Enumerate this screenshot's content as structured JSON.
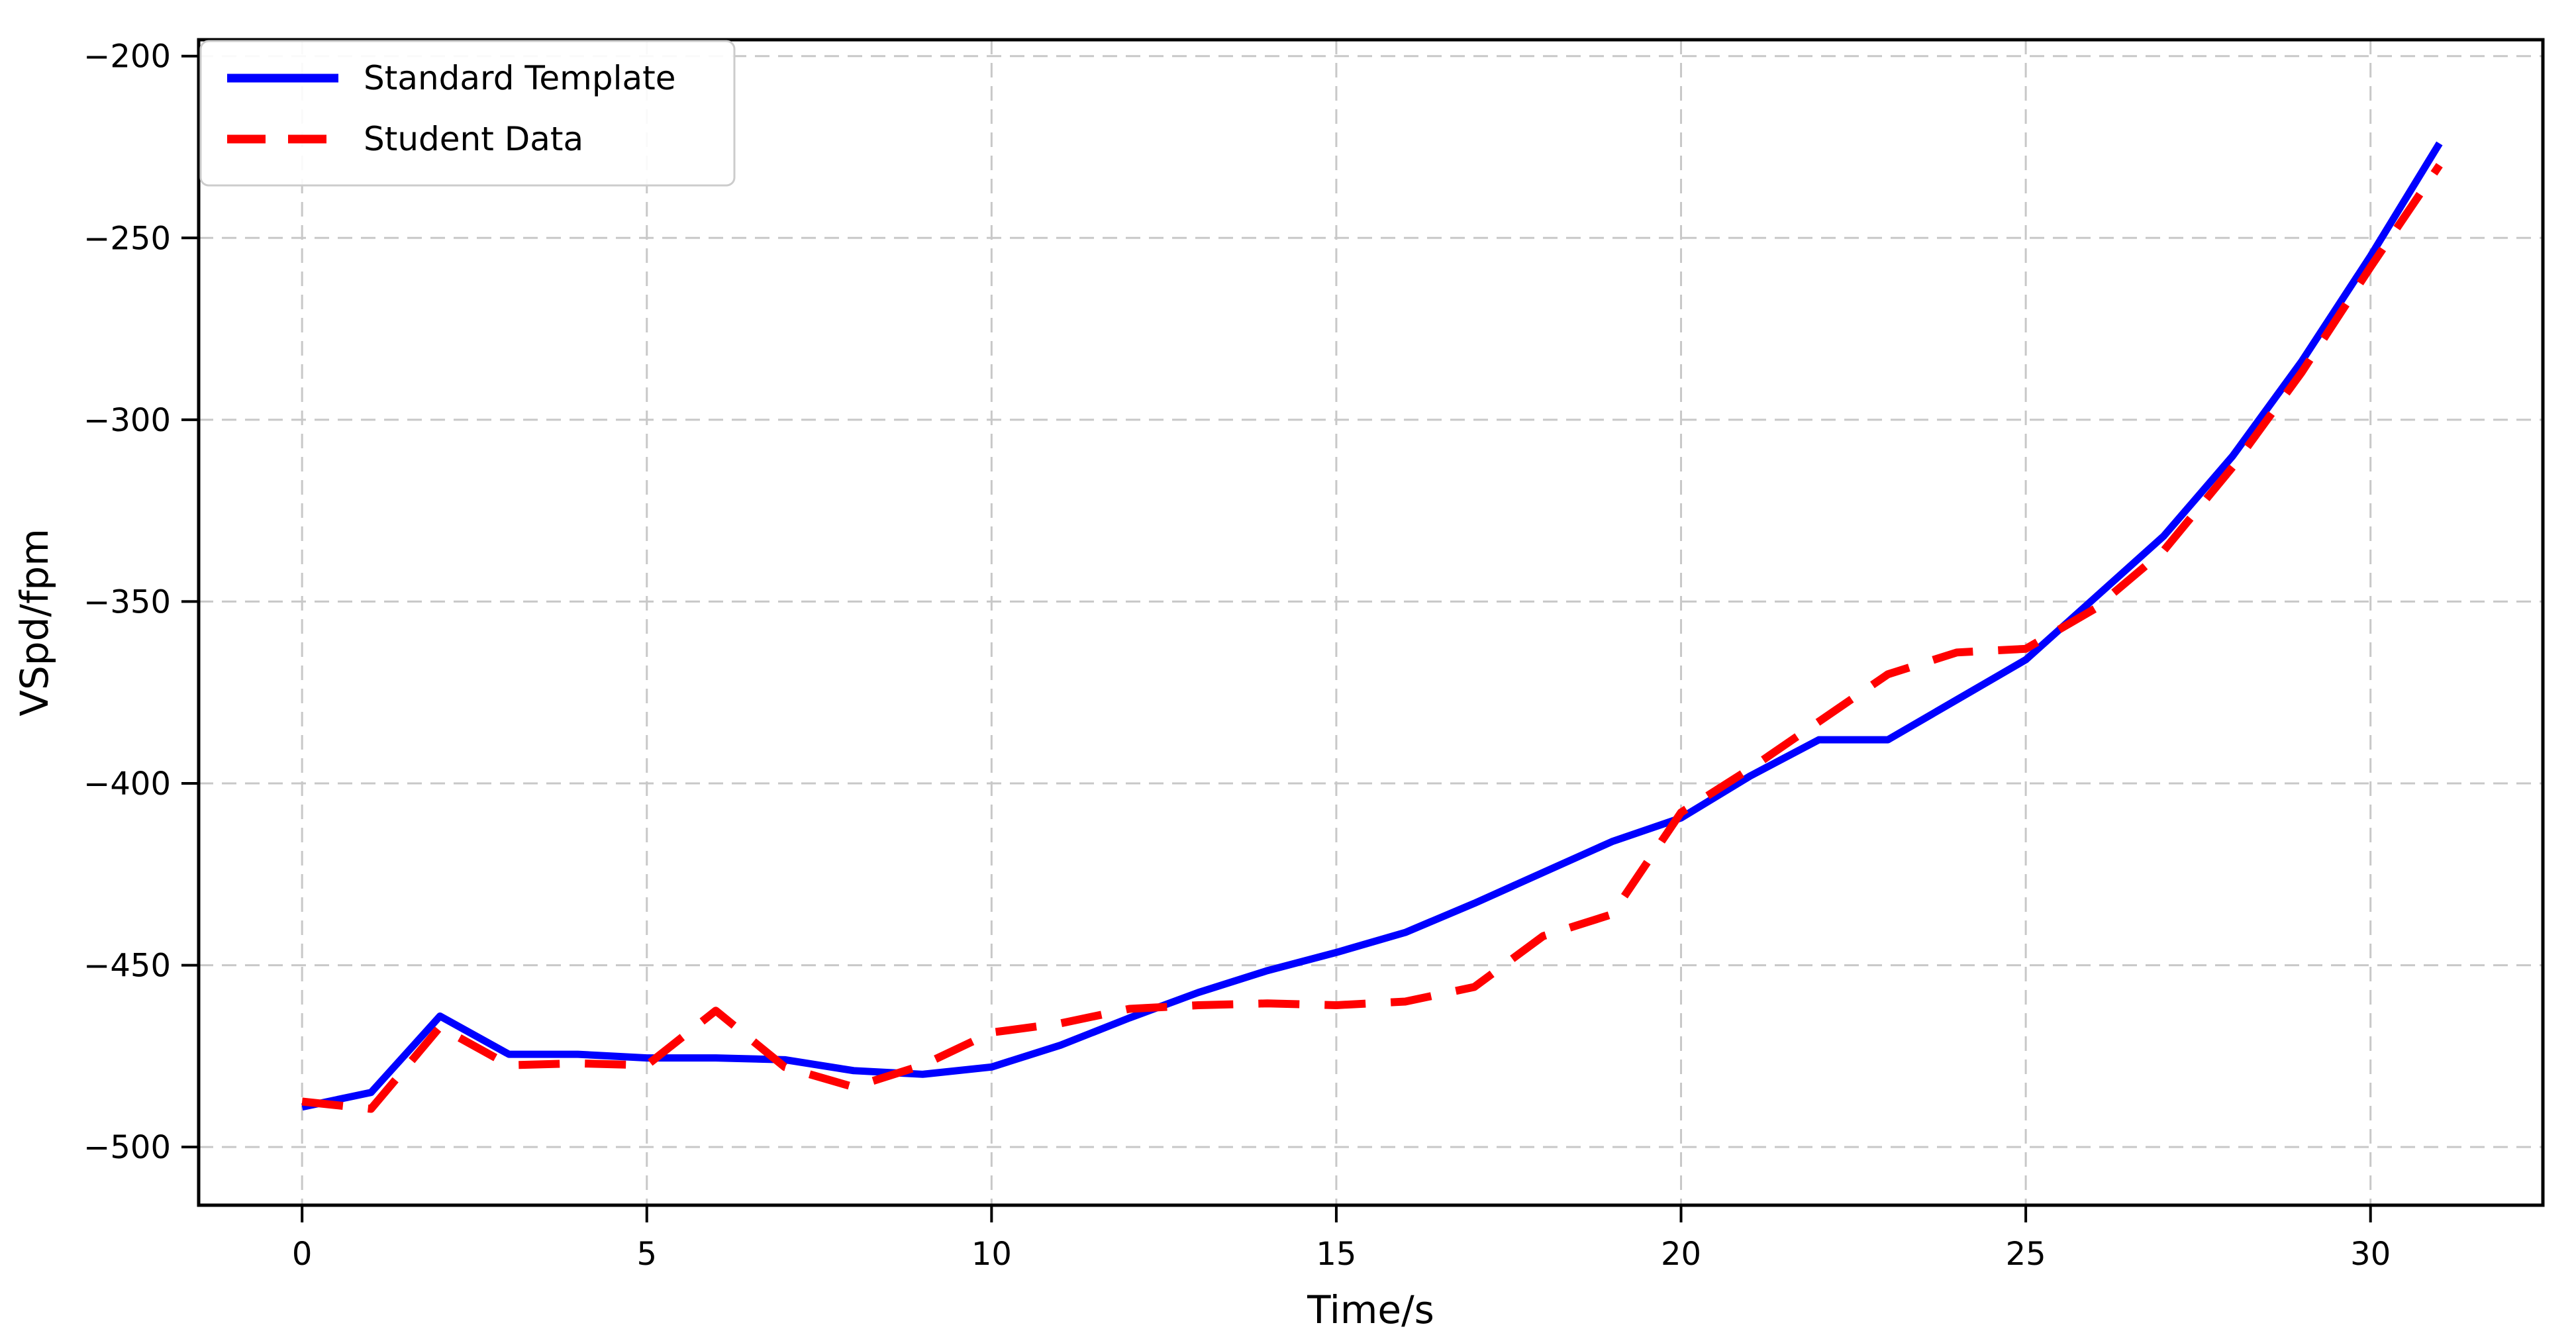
{
  "figure": {
    "background": "#ffffff"
  },
  "chart_data": {
    "type": "line",
    "title": "",
    "xlabel": "Time/s",
    "ylabel": "VSpd/fpm",
    "xlim": [
      -1.5,
      32.5
    ],
    "ylim": [
      -516,
      -195.5
    ],
    "grid": true,
    "grid_style": "dashed",
    "x": [
      0,
      1,
      2,
      3,
      4,
      5,
      6,
      7,
      8,
      9,
      10,
      11,
      12,
      13,
      14,
      15,
      16,
      17,
      18,
      19,
      20,
      21,
      22,
      23,
      24,
      25,
      26,
      27,
      28,
      29,
      30,
      31
    ],
    "series": [
      {
        "name": "Standard Template",
        "color": "#0000ff",
        "style": "solid",
        "linewidth": 11,
        "values": [
          -489,
          -485,
          -464,
          -474.5,
          -474.5,
          -475.5,
          -475.5,
          -476,
          -479,
          -480,
          -478,
          -472,
          -464.5,
          -457.5,
          -451.5,
          -446.5,
          -441,
          -433,
          -424.5,
          -416,
          -409.5,
          -398,
          -388,
          -388,
          -377,
          -366,
          -349,
          -332,
          -310,
          -284,
          -255,
          -224
        ]
      },
      {
        "name": "Student Data",
        "color": "#ff0000",
        "style": "dashed",
        "linewidth": 12,
        "values": [
          -487.5,
          -489.5,
          -467,
          -477.5,
          -477,
          -477.5,
          -462.5,
          -478,
          -483.5,
          -477.5,
          -468.5,
          -466,
          -462,
          -461,
          -460.5,
          -461,
          -460,
          -456,
          -442,
          -436,
          -408,
          -396,
          -383,
          -370,
          -364,
          -363,
          -352,
          -336,
          -313,
          -287,
          -258,
          -230
        ]
      }
    ],
    "xticks": {
      "values": [
        0,
        5,
        10,
        15,
        20,
        25,
        30
      ],
      "labels": [
        "0",
        "5",
        "10",
        "15",
        "20",
        "25",
        "30"
      ]
    },
    "yticks": {
      "values": [
        -200,
        -250,
        -300,
        -350,
        -400,
        -450,
        -500
      ],
      "labels": [
        "−200",
        "−250",
        "−300",
        "−350",
        "−400",
        "−450",
        "−500"
      ]
    },
    "legend": {
      "position": "upper-left",
      "entries": [
        {
          "label": "Standard Template",
          "color": "#0000ff",
          "style": "solid"
        },
        {
          "label": "Student Data",
          "color": "#ff0000",
          "style": "dashed"
        }
      ]
    }
  },
  "colors": {
    "grid": "#c8c8c8",
    "spine": "#000000",
    "text": "#000000",
    "legend_border": "#cccccc",
    "legend_background": "#ffffff"
  }
}
